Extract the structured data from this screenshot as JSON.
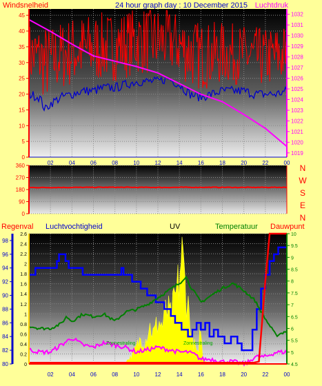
{
  "header": {
    "left_label": "Windsnelheid",
    "title": "24 hour graph day : 10 December 2015",
    "right_label": "Luchtdruk"
  },
  "compass_letters": [
    "N",
    "W",
    "S",
    "E",
    "N"
  ],
  "bottom_header": {
    "regenval": "Regenval",
    "luchtvochtigheid": "Luchtvochtigheid",
    "uv": "UV",
    "temperatuur": "Temperatuur",
    "dauwpunt": "Dauwpunt"
  },
  "zonne_labels": [
    "Zonnestraling",
    "Zonnestraling"
  ],
  "colors": {
    "background": "#ffff99",
    "wind_gust": "#ff0000",
    "wind_avg": "#0000cc",
    "pressure": "#ff00ff",
    "direction": "#ff0000",
    "humidity": "#0000ff",
    "uv": "#ffff00",
    "temperature": "#008000",
    "dewpoint": "#ff00ff",
    "rain": "#ff0000",
    "title_blue": "#0000cc",
    "label_red": "#ff0000",
    "label_green": "#008000"
  },
  "chart_data": [
    {
      "type": "line",
      "name": "wind-pressure",
      "x_ticks": [
        "02",
        "04",
        "06",
        "08",
        "10",
        "12",
        "14",
        "16",
        "18",
        "20",
        "22",
        "00"
      ],
      "xlim": [
        0,
        24
      ],
      "y_left_ticks": [
        0,
        5,
        10,
        15,
        20,
        25,
        30,
        35,
        40,
        45
      ],
      "ylim_left": [
        0,
        47
      ],
      "y_right_ticks": [
        1019,
        1020,
        1021,
        1022,
        1023,
        1024,
        1025,
        1026,
        1027,
        1028,
        1029,
        1030,
        1031,
        1032
      ],
      "ylim_right": [
        1018.6,
        1032.5
      ],
      "series": [
        {
          "name": "Windsnelheid",
          "axis": "left",
          "style": "gust",
          "x": [
            0.0,
            2.0,
            4.0,
            6.0,
            8.0,
            10.0,
            12.0,
            14.0,
            16.0,
            18.0,
            20.0,
            22.0,
            24.0
          ],
          "y": [
            33,
            32,
            35,
            36,
            36,
            38,
            38,
            36,
            33,
            33,
            32,
            31,
            33
          ]
        },
        {
          "name": "",
          "axis": "left",
          "style": "avg",
          "x": [
            0.0,
            1.0,
            1.5,
            2.0,
            3.0,
            4.0,
            5.0,
            6.0,
            7.0,
            8.0,
            9.0,
            10.0,
            11.0,
            12.0,
            13.0,
            14.0,
            15.0,
            16.0,
            17.0,
            18.0,
            19.0,
            20.0,
            21.0,
            22.0,
            23.0,
            24.0
          ],
          "y": [
            20,
            19,
            15,
            17,
            19,
            20,
            21,
            21,
            22,
            22,
            23,
            24,
            24,
            24,
            25,
            23,
            20,
            19,
            20,
            21,
            21,
            21,
            20,
            20,
            20,
            21
          ]
        },
        {
          "name": "Luchtdruk",
          "axis": "right",
          "style": "pressure",
          "x": [
            0.0,
            2.0,
            4.0,
            6.0,
            8.0,
            10.0,
            12.0,
            14.0,
            16.0,
            18.0,
            20.0,
            22.0,
            24.0
          ],
          "y": [
            1031.5,
            1030.4,
            1029.2,
            1028.1,
            1027.6,
            1027.1,
            1026.5,
            1025.5,
            1024.5,
            1023.8,
            1022.6,
            1021.3,
            1019.6
          ]
        }
      ]
    },
    {
      "type": "line",
      "name": "wind-direction",
      "x_ticks": [
        "02",
        "04",
        "06",
        "08",
        "10",
        "12",
        "14",
        "16",
        "18",
        "20",
        "22",
        "00"
      ],
      "xlim": [
        0,
        24
      ],
      "y_left_ticks": [
        0,
        90,
        180,
        270,
        360
      ],
      "ylim": [
        0,
        360
      ],
      "series": [
        {
          "name": "",
          "axis": "left",
          "style": "direction",
          "x": [
            0.0,
            4.0,
            8.0,
            12.0,
            16.0,
            20.0,
            24.0
          ],
          "y": [
            195,
            196,
            197,
            196,
            197,
            196,
            197
          ]
        }
      ]
    },
    {
      "type": "line",
      "name": "humidity-uv-temp",
      "x_ticks": [
        "02",
        "04",
        "06",
        "08",
        "10",
        "12",
        "14",
        "16",
        "18",
        "20",
        "22",
        "00"
      ],
      "xlim": [
        0,
        24
      ],
      "y_humidity_ticks": [
        80,
        82,
        84,
        86,
        88,
        90,
        92,
        94,
        96,
        98
      ],
      "ylim_humidity": [
        80,
        99
      ],
      "y_uv_ticks": [
        0,
        0.2,
        0.4,
        0.6,
        0.8,
        1,
        1.2,
        1.4,
        1.6,
        1.8,
        2,
        2.2,
        2.4,
        2.6
      ],
      "ylim_uv": [
        0,
        2.6
      ],
      "y_temp_ticks": [
        4.5,
        5,
        5.5,
        6,
        6.5,
        7,
        7.5,
        8,
        8.5,
        9,
        9.5,
        10
      ],
      "ylim_temp": [
        4.5,
        10
      ],
      "series": [
        {
          "name": "Luchtvochtigheid",
          "axis": "humidity",
          "style": "step",
          "x": [
            0.0,
            0.6,
            2.0,
            2.6,
            2.8,
            3.4,
            3.7,
            5.0,
            7.0,
            7.6,
            8.6,
            8.8,
            9.2,
            9.6,
            10.4,
            11.0,
            11.8,
            12.6,
            13.2,
            13.6,
            14.2,
            14.8,
            15.2,
            15.6,
            16.0,
            16.4,
            16.8,
            17.2,
            17.6,
            18.2,
            18.8,
            19.4,
            19.8,
            20.4,
            20.8,
            21.2,
            21.6,
            22.0,
            22.4,
            22.8,
            23.2,
            23.6,
            24.0
          ],
          "y": [
            93,
            94,
            94,
            95,
            96,
            95,
            94,
            93,
            93,
            93,
            94,
            93,
            93,
            92,
            91,
            90,
            89,
            88,
            87,
            86,
            85,
            84,
            85,
            86,
            85,
            86,
            84,
            85,
            84,
            83,
            84,
            83,
            82,
            82,
            85,
            88,
            91,
            93,
            95,
            96,
            97,
            97,
            97
          ]
        },
        {
          "name": "UV",
          "axis": "uv",
          "style": "uv",
          "x": [
            0.0,
            8.8,
            9.2,
            9.6,
            10.0,
            10.4,
            10.8,
            11.2,
            11.6,
            12.0,
            12.4,
            12.8,
            13.2,
            13.6,
            14.0,
            14.2,
            14.4,
            14.6,
            14.8,
            15.0,
            15.2,
            15.6,
            15.8,
            16.0,
            16.1,
            16.3,
            16.6,
            24.0
          ],
          "y": [
            0.0,
            0.0,
            0.1,
            0.2,
            0.4,
            0.6,
            0.5,
            0.9,
            0.7,
            1.0,
            0.9,
            1.3,
            1.1,
            1.5,
            2.0,
            2.6,
            2.2,
            1.7,
            1.4,
            1.0,
            0.6,
            0.3,
            0.2,
            1.2,
            0.2,
            0.1,
            0.0,
            0.0
          ]
        },
        {
          "name": "Temperatuur",
          "axis": "temp",
          "style": "temp",
          "x": [
            0.0,
            1.0,
            2.0,
            3.0,
            3.5,
            4.0,
            5.0,
            6.0,
            7.0,
            8.0,
            9.0,
            10.0,
            11.0,
            12.0,
            13.0,
            14.0,
            14.6,
            15.0,
            16.0,
            17.0,
            18.0,
            19.0,
            20.0,
            21.0,
            22.0,
            23.0,
            24.0
          ],
          "y": [
            6.1,
            6.0,
            6.0,
            6.2,
            6.5,
            6.3,
            6.6,
            6.5,
            6.6,
            6.3,
            6.7,
            6.8,
            7.0,
            7.3,
            7.6,
            7.9,
            8.2,
            7.8,
            7.1,
            7.4,
            7.7,
            7.9,
            7.6,
            7.2,
            6.4,
            5.7,
            5.9
          ]
        },
        {
          "name": "Dauwpunt",
          "axis": "temp",
          "style": "dew",
          "x": [
            0.0,
            1.0,
            2.0,
            3.0,
            4.0,
            5.0,
            6.0,
            7.0,
            8.0,
            9.0,
            10.0,
            11.0,
            12.0,
            13.0,
            14.0,
            14.8,
            15.4,
            16.0,
            17.0,
            18.0,
            19.0,
            20.0,
            20.5,
            21.0,
            22.0,
            23.0,
            24.0
          ],
          "y": [
            5.1,
            5.0,
            5.0,
            5.3,
            5.6,
            5.3,
            5.2,
            5.4,
            5.3,
            5.2,
            5.0,
            5.1,
            5.2,
            5.1,
            5.0,
            5.0,
            4.9,
            4.7,
            4.7,
            4.6,
            4.6,
            4.5,
            4.6,
            4.8,
            4.8,
            5.0,
            5.0
          ]
        },
        {
          "name": "Regenval",
          "axis": "temp",
          "style": "rain",
          "x": [
            0.0,
            20.9,
            21.4,
            22.0,
            22.4,
            24.0
          ],
          "y": [
            4.55,
            4.55,
            4.6,
            8.0,
            10.0,
            10.0
          ]
        }
      ]
    }
  ]
}
